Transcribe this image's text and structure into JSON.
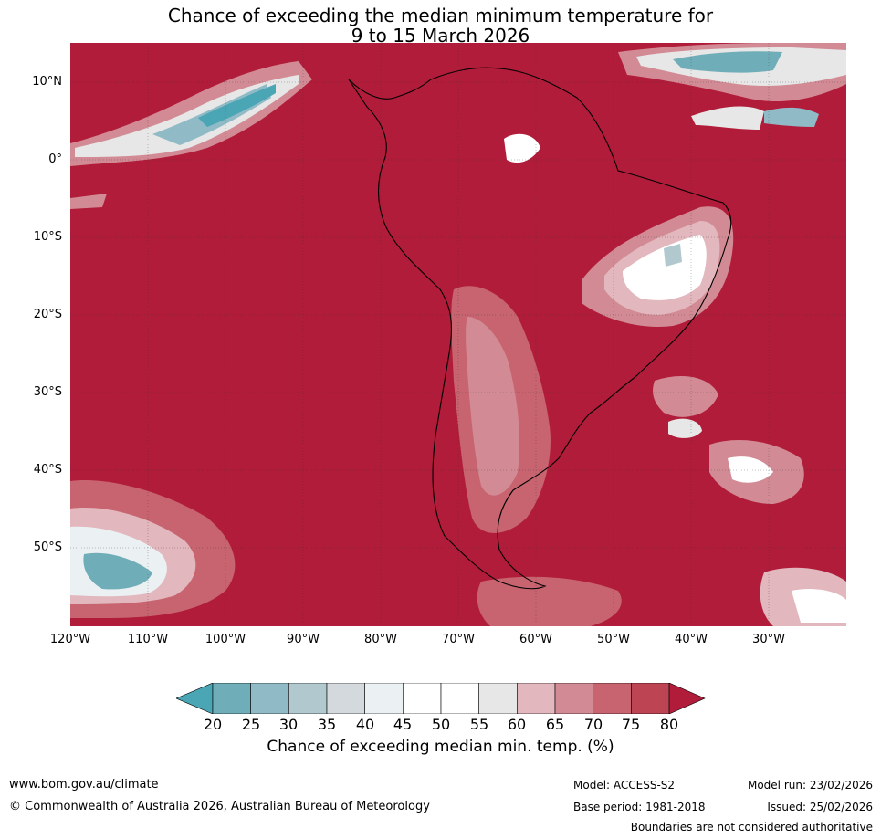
{
  "header": {
    "title_line1": "Chance of exceeding the median minimum temperature for",
    "title_line2": "9 to 15 March 2026"
  },
  "map": {
    "lat_labels": [
      "10°N",
      "0°",
      "10°S",
      "20°S",
      "30°S",
      "40°S",
      "50°S"
    ],
    "lon_labels": [
      "120°W",
      "110°W",
      "100°W",
      "90°W",
      "80°W",
      "70°W",
      "60°W",
      "50°W",
      "40°W",
      "30°W"
    ],
    "background_color": "#b01c39"
  },
  "legend": {
    "ticks": [
      "20",
      "25",
      "30",
      "35",
      "40",
      "45",
      "50",
      "55",
      "60",
      "65",
      "70",
      "75",
      "80"
    ],
    "colors": [
      "#4aa5b5",
      "#6fadb8",
      "#8fbac6",
      "#b0c8ce",
      "#d3d9dc",
      "#ebf0f2",
      "#ffffff",
      "#ffffff",
      "#e7e7e7",
      "#e2b7bd",
      "#d28b95",
      "#c7646f",
      "#bd4553",
      "#b01c39"
    ],
    "label": "Chance of exceeding median min. temp. (%)"
  },
  "footer": {
    "website": "www.bom.gov.au/climate",
    "copyright": "© Commonwealth of Australia 2026, Australian Bureau of Meteorology",
    "model": "Model: ACCESS-S2",
    "base_period": "Base period: 1981-2018",
    "model_run": "Model run: 23/02/2026",
    "issued": "Issued: 25/02/2026",
    "disclaimer": "Boundaries are not considered authoritative"
  }
}
